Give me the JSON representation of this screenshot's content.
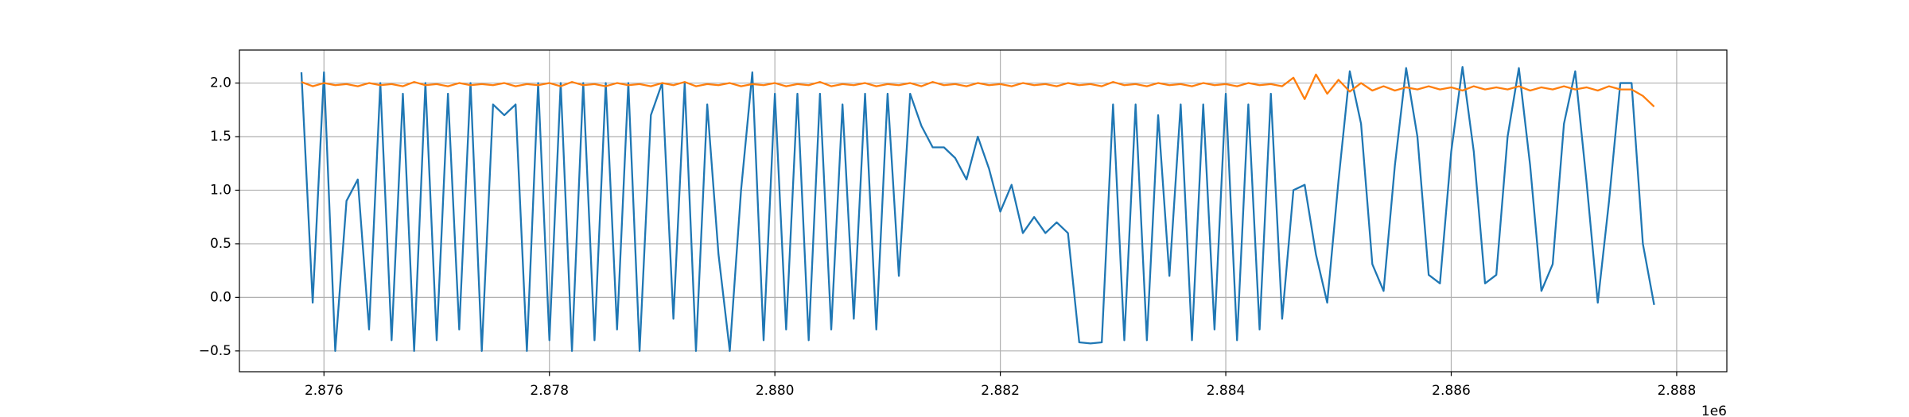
{
  "chart_data": {
    "type": "line",
    "x": [
      2875800,
      2875900,
      2876000,
      2876100,
      2876200,
      2876300,
      2876400,
      2876500,
      2876600,
      2876700,
      2876800,
      2876900,
      2877000,
      2877100,
      2877200,
      2877300,
      2877400,
      2877500,
      2877600,
      2877700,
      2877800,
      2877900,
      2878000,
      2878100,
      2878200,
      2878300,
      2878400,
      2878500,
      2878600,
      2878700,
      2878800,
      2878900,
      2879000,
      2879100,
      2879200,
      2879300,
      2879400,
      2879500,
      2879600,
      2879700,
      2879800,
      2879900,
      2880000,
      2880100,
      2880200,
      2880300,
      2880400,
      2880500,
      2880600,
      2880700,
      2880800,
      2880900,
      2881000,
      2881100,
      2881200,
      2881300,
      2881400,
      2881500,
      2881600,
      2881700,
      2881800,
      2881900,
      2882000,
      2882100,
      2882200,
      2882300,
      2882400,
      2882500,
      2882600,
      2882700,
      2882800,
      2882900,
      2883000,
      2883100,
      2883200,
      2883300,
      2883400,
      2883500,
      2883600,
      2883700,
      2883800,
      2883900,
      2884000,
      2884100,
      2884200,
      2884300,
      2884400,
      2884500,
      2884600,
      2884700,
      2884800,
      2884900,
      2885000,
      2885100,
      2885200,
      2885300,
      2885400,
      2885500,
      2885600,
      2885700,
      2885800,
      2885900,
      2886000,
      2886100,
      2886200,
      2886300,
      2886400,
      2886500,
      2886600,
      2886700,
      2886800,
      2886900,
      2887000,
      2887100,
      2887200,
      2887300,
      2887400,
      2887500,
      2887600,
      2887700,
      2887800
    ],
    "series": [
      {
        "color": "#1f77b4",
        "values": [
          2.1,
          -0.05,
          2.1,
          -0.5,
          0.9,
          1.1,
          -0.3,
          2.0,
          -0.4,
          1.9,
          -0.5,
          2.0,
          -0.4,
          1.9,
          -0.3,
          2.0,
          -0.5,
          1.8,
          1.7,
          1.8,
          -0.5,
          2.0,
          -0.4,
          2.0,
          -0.5,
          2.0,
          -0.4,
          2.0,
          -0.3,
          2.0,
          -0.5,
          1.7,
          2.0,
          -0.2,
          2.0,
          -0.5,
          1.8,
          0.4,
          -0.5,
          1.0,
          2.1,
          -0.4,
          1.9,
          -0.3,
          1.9,
          -0.4,
          1.9,
          -0.3,
          1.8,
          -0.2,
          1.9,
          -0.3,
          1.9,
          0.2,
          1.9,
          1.6,
          1.4,
          1.4,
          1.3,
          1.1,
          1.5,
          1.2,
          0.8,
          1.05,
          0.6,
          0.75,
          0.6,
          0.7,
          0.6,
          -0.42,
          -0.43,
          -0.42,
          1.8,
          -0.4,
          1.8,
          -0.4,
          1.7,
          0.2,
          1.8,
          -0.4,
          1.8,
          -0.3,
          1.9,
          -0.4,
          1.8,
          -0.3,
          1.9,
          -0.2,
          1.0,
          1.05,
          0.4,
          -0.05,
          1.09,
          2.11,
          1.62,
          0.31,
          0.06,
          1.23,
          2.14,
          1.5,
          0.21,
          0.13,
          1.36,
          2.15,
          1.36,
          0.13,
          0.21,
          1.5,
          2.14,
          1.23,
          0.06,
          0.31,
          1.62,
          2.11,
          1.08,
          -0.05,
          0.9,
          2.0,
          2.0,
          0.5,
          -0.07
        ]
      },
      {
        "color": "#ff7f0e",
        "values": [
          2.01,
          1.97,
          2.0,
          1.98,
          1.99,
          1.97,
          2.0,
          1.98,
          1.99,
          1.97,
          2.01,
          1.98,
          1.99,
          1.97,
          2.0,
          1.98,
          1.99,
          1.98,
          2.0,
          1.97,
          1.99,
          1.98,
          2.0,
          1.97,
          2.01,
          1.98,
          1.99,
          1.97,
          2.0,
          1.98,
          1.99,
          1.97,
          2.0,
          1.98,
          2.01,
          1.97,
          1.99,
          1.98,
          2.0,
          1.97,
          1.99,
          1.98,
          2.0,
          1.97,
          1.99,
          1.98,
          2.01,
          1.97,
          1.99,
          1.98,
          2.0,
          1.97,
          1.99,
          1.98,
          2.0,
          1.97,
          2.01,
          1.98,
          1.99,
          1.97,
          2.0,
          1.98,
          1.99,
          1.97,
          2.0,
          1.98,
          1.99,
          1.97,
          2.0,
          1.98,
          1.99,
          1.97,
          2.01,
          1.98,
          1.99,
          1.97,
          2.0,
          1.98,
          1.99,
          1.97,
          2.0,
          1.98,
          1.99,
          1.97,
          2.0,
          1.98,
          1.99,
          1.97,
          2.05,
          1.85,
          2.08,
          1.9,
          2.03,
          1.92,
          2.0,
          1.93,
          1.97,
          1.93,
          1.96,
          1.94,
          1.97,
          1.94,
          1.96,
          1.93,
          1.97,
          1.94,
          1.96,
          1.94,
          1.97,
          1.93,
          1.96,
          1.94,
          1.97,
          1.94,
          1.96,
          1.93,
          1.97,
          1.94,
          1.94,
          1.88,
          1.78
        ]
      }
    ],
    "xlim": [
      2875250,
      2888445
    ],
    "ylim": [
      -0.694,
      2.308
    ],
    "xticks": [
      {
        "value": 2876000,
        "label": "2.876"
      },
      {
        "value": 2878000,
        "label": "2.878"
      },
      {
        "value": 2880000,
        "label": "2.880"
      },
      {
        "value": 2882000,
        "label": "2.882"
      },
      {
        "value": 2884000,
        "label": "2.884"
      },
      {
        "value": 2886000,
        "label": "2.886"
      },
      {
        "value": 2888000,
        "label": "2.888"
      }
    ],
    "yticks": [
      {
        "value": -0.5,
        "label": "−0.5"
      },
      {
        "value": 0,
        "label": "0.0"
      },
      {
        "value": 0.5,
        "label": "0.5"
      },
      {
        "value": 1,
        "label": "1.0"
      },
      {
        "value": 1.5,
        "label": "1.5"
      },
      {
        "value": 2,
        "label": "2.0"
      }
    ],
    "x_offset_label": "1e6",
    "grid": true
  }
}
